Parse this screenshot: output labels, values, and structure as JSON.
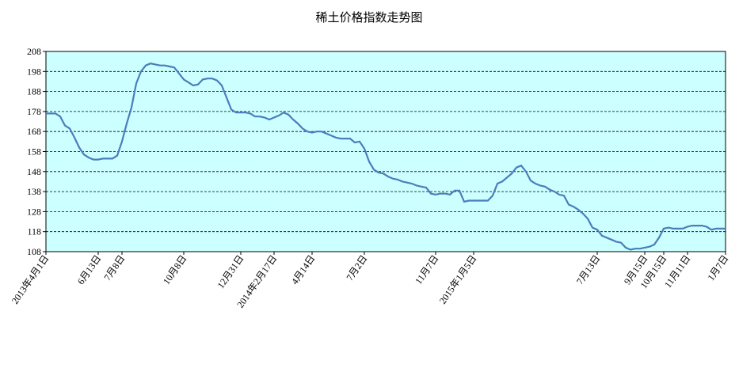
{
  "chart_data": {
    "type": "line",
    "title": "稀土价格指数走势图",
    "categories": [
      "2013年4月1日",
      null,
      null,
      null,
      null,
      null,
      null,
      null,
      null,
      null,
      null,
      "6月13日",
      null,
      null,
      null,
      null,
      "7月8日",
      null,
      null,
      null,
      null,
      null,
      null,
      null,
      null,
      null,
      null,
      null,
      null,
      "10月8日",
      null,
      null,
      null,
      null,
      null,
      null,
      null,
      null,
      null,
      null,
      null,
      "12月31日",
      null,
      null,
      null,
      null,
      null,
      null,
      "2014年2月17日",
      null,
      null,
      null,
      null,
      null,
      null,
      null,
      "4月14日",
      null,
      null,
      null,
      null,
      null,
      null,
      null,
      null,
      null,
      null,
      "7月2日",
      null,
      null,
      null,
      null,
      null,
      null,
      null,
      null,
      null,
      null,
      null,
      null,
      null,
      null,
      "11月7日",
      null,
      null,
      null,
      null,
      null,
      null,
      null,
      "2015年1月5日",
      null,
      null,
      null,
      null,
      null,
      null,
      null,
      null,
      null,
      null,
      null,
      null,
      null,
      null,
      null,
      null,
      null,
      null,
      null,
      null,
      null,
      null,
      null,
      null,
      null,
      "7月13日",
      null,
      null,
      null,
      null,
      null,
      null,
      null,
      null,
      null,
      "9月15日",
      null,
      null,
      null,
      "10月15日",
      null,
      null,
      null,
      null,
      "11月11日",
      null,
      null,
      null,
      null,
      null,
      null,
      null,
      "1月7日"
    ],
    "series": [
      {
        "color": "#4a7ebb",
        "values": [
          177,
          177,
          177,
          175.5,
          171,
          169.5,
          165,
          160,
          156.5,
          155,
          154,
          154,
          154.5,
          154.5,
          154.5,
          156,
          163,
          172,
          180,
          192,
          198,
          201,
          202,
          201.5,
          201,
          201,
          200.5,
          200,
          197,
          194,
          192.5,
          191,
          191.5,
          194,
          194.5,
          194.5,
          193.5,
          191,
          185,
          179,
          177.5,
          177.5,
          177.5,
          177,
          175.5,
          175.5,
          175,
          174,
          175,
          176,
          177.5,
          176.5,
          174,
          172,
          169.5,
          168,
          167.5,
          168,
          168,
          167,
          166,
          165,
          164.5,
          164.5,
          164.5,
          162.5,
          163,
          159.5,
          153,
          149,
          147.5,
          147,
          145.5,
          144.5,
          144,
          143,
          142.5,
          142,
          141,
          140.5,
          140,
          137,
          136.5,
          137,
          137,
          136.5,
          138.5,
          138.5,
          133,
          133.5,
          133.5,
          133.5,
          133.5,
          133.5,
          136,
          142,
          143,
          145,
          147,
          150,
          151,
          148,
          143.5,
          142,
          141,
          140.5,
          139,
          138,
          136.5,
          136,
          131.5,
          130.5,
          129,
          127,
          124.5,
          120,
          119,
          116,
          115,
          114,
          113,
          112.5,
          110,
          109,
          109.5,
          109.5,
          110,
          110.5,
          111.5,
          115,
          119.5,
          120,
          119.5,
          119.5,
          119.5,
          120.5,
          121,
          121,
          121,
          120.5,
          119,
          119.5,
          119.5,
          119.5
        ]
      }
    ],
    "ylim": [
      108,
      208
    ],
    "yticks": [
      108,
      118,
      128,
      138,
      148,
      158,
      168,
      178,
      188,
      198,
      208
    ],
    "grid": true,
    "plot_background": "#ccffff"
  }
}
